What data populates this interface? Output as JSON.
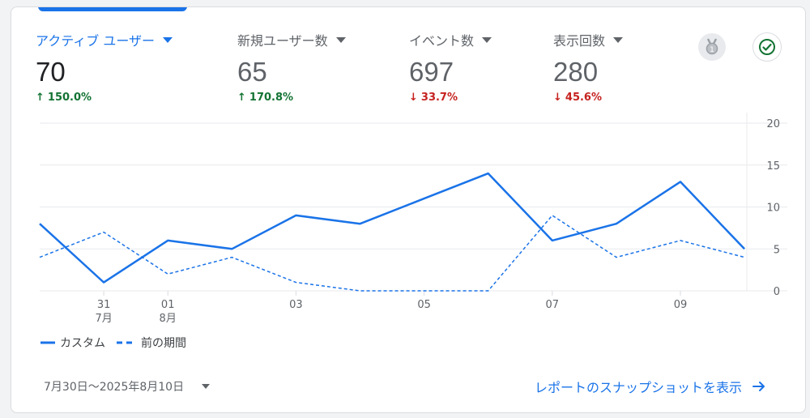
{
  "metrics": [
    {
      "label": "アクティブ ユーザー",
      "value": "70",
      "change": "150.0%",
      "direction": "up",
      "active": true
    },
    {
      "label": "新規ユーザー数",
      "value": "65",
      "change": "170.8%",
      "direction": "up",
      "active": false
    },
    {
      "label": "イベント数",
      "value": "697",
      "change": "33.7%",
      "direction": "down",
      "active": false
    },
    {
      "label": "表示回数",
      "value": "280",
      "change": "45.6%",
      "direction": "down",
      "active": false
    }
  ],
  "icons": {
    "badge": "award-badge-icon",
    "check": "check-circle-icon"
  },
  "colors": {
    "primary": "#1a73e8",
    "up": "#137333",
    "down": "#c5221f"
  },
  "chart_data": {
    "type": "line",
    "x": [
      "7/30",
      "7/31",
      "8/01",
      "8/02",
      "8/03",
      "8/04",
      "8/05",
      "8/06",
      "8/07",
      "8/08",
      "8/09",
      "8/10"
    ],
    "x_tick_labels": [
      {
        "index": 1,
        "line1": "31",
        "line2": "7月"
      },
      {
        "index": 2,
        "line1": "01",
        "line2": "8月"
      },
      {
        "index": 4,
        "line1": "03",
        "line2": ""
      },
      {
        "index": 6,
        "line1": "05",
        "line2": ""
      },
      {
        "index": 8,
        "line1": "07",
        "line2": ""
      },
      {
        "index": 10,
        "line1": "09",
        "line2": ""
      }
    ],
    "y_ticks": [
      0,
      5,
      10,
      15,
      20
    ],
    "ylim": [
      0,
      20
    ],
    "grid": true,
    "series": [
      {
        "name": "カスタム",
        "style": "solid",
        "values": [
          8,
          1,
          6,
          5,
          9,
          8,
          11,
          14,
          6,
          8,
          13,
          5
        ]
      },
      {
        "name": "前の期間",
        "style": "dashed",
        "values": [
          4,
          7,
          2,
          4,
          1,
          0,
          0,
          0,
          9,
          4,
          6,
          4
        ]
      }
    ],
    "legend_position": "bottom-left"
  },
  "footer": {
    "date_range": "7月30日～2025年8月10日",
    "link_text": "レポートのスナップショットを表示"
  }
}
